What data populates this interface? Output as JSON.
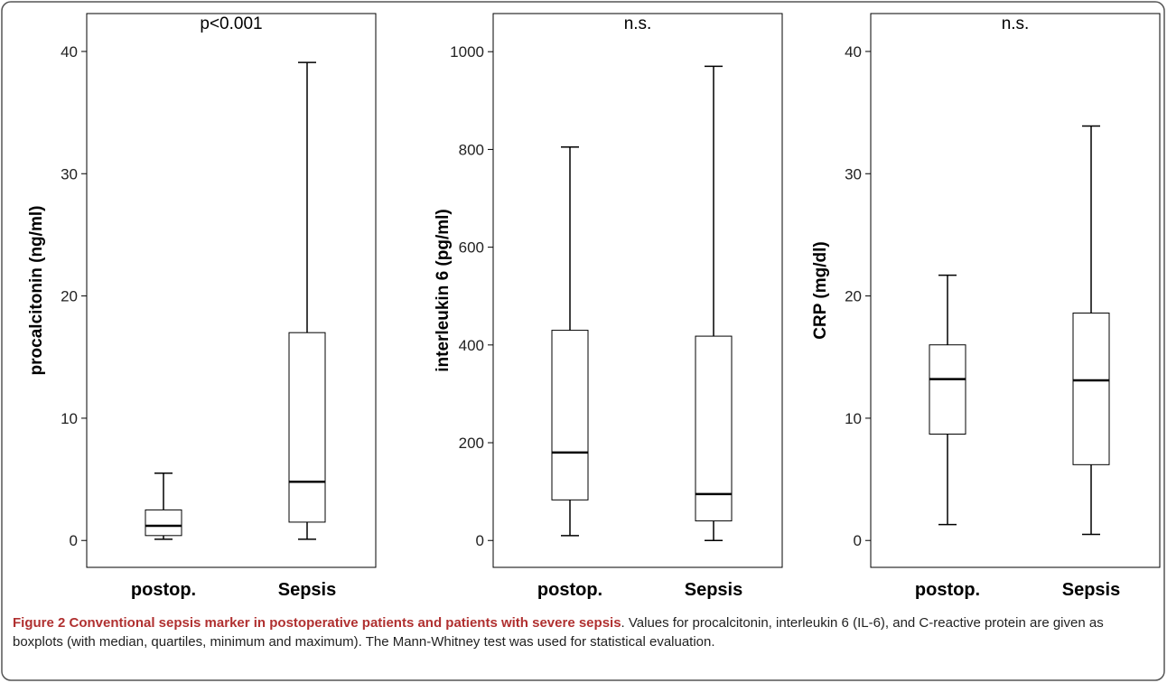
{
  "chart_data": [
    {
      "type": "box",
      "annotation": "p<0.001",
      "ylabel": "procalcitonin (ng/ml)",
      "categories": [
        "postop.",
        "Sepsis"
      ],
      "stats": [
        {
          "min": 0.1,
          "q1": 0.4,
          "median": 1.2,
          "q3": 2.5,
          "max": 5.5
        },
        {
          "min": 0.1,
          "q1": 1.5,
          "median": 4.8,
          "q3": 17,
          "max": 39.1
        }
      ],
      "ylim": [
        -2.2,
        43.1
      ],
      "yticks": [
        0,
        10,
        20,
        30,
        40
      ],
      "color": "#000000"
    },
    {
      "type": "box",
      "annotation": "n.s.",
      "ylabel": "interleukin 6 (pg/ml)",
      "categories": [
        "postop.",
        "Sepsis"
      ],
      "stats": [
        {
          "min": 10,
          "q1": 83,
          "median": 180,
          "q3": 430,
          "max": 805
        },
        {
          "min": 0,
          "q1": 40,
          "median": 95,
          "q3": 418,
          "max": 970
        }
      ],
      "ylim": [
        -55,
        1078
      ],
      "yticks": [
        0,
        200,
        400,
        600,
        800,
        1000
      ],
      "color": "#000000"
    },
    {
      "type": "box",
      "annotation": "n.s.",
      "ylabel": "CRP (mg/dl)",
      "categories": [
        "postop.",
        "Sepsis"
      ],
      "stats": [
        {
          "min": 1.3,
          "q1": 8.7,
          "median": 13.2,
          "q3": 16,
          "max": 21.7
        },
        {
          "min": 0.5,
          "q1": 6.2,
          "median": 13.1,
          "q3": 18.6,
          "max": 33.9
        }
      ],
      "ylim": [
        -2.2,
        43.1
      ],
      "yticks": [
        0,
        10,
        20,
        30,
        40
      ],
      "color": "#000000"
    }
  ],
  "caption": {
    "title": "Figure 2 Conventional sepsis marker in postoperative patients and patients with severe sepsis",
    "text": ". Values for procalcitonin, interleukin 6 (IL-6), and C-reactive protein are given as boxplots (with median, quartiles, minimum and maximum). The Mann-Whitney test was used for statistical evaluation."
  }
}
